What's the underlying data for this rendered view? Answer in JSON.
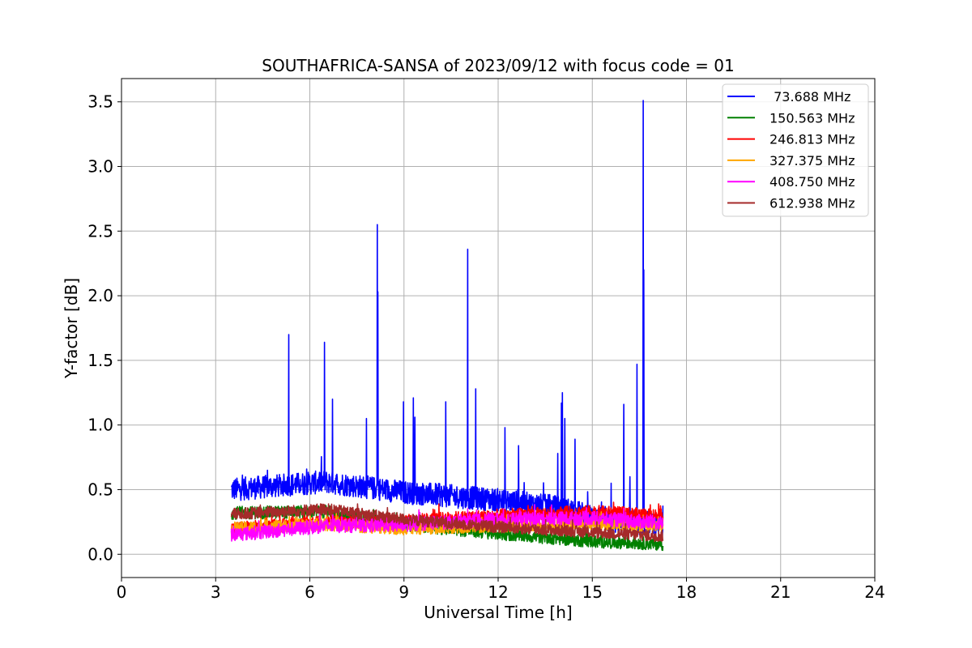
{
  "chart_data": {
    "type": "line",
    "title": "SOUTHAFRICA-SANSA of 2023/09/12 with focus code = 01",
    "xlabel": "Universal Time [h]",
    "ylabel": "Y-factor [dB]",
    "xlim": [
      0,
      24
    ],
    "ylim": [
      -0.18,
      3.68
    ],
    "x_ticks": [
      0,
      3,
      6,
      9,
      12,
      15,
      18,
      21,
      24
    ],
    "x_tick_labels": [
      "0",
      "3",
      "6",
      "9",
      "12",
      "15",
      "18",
      "21",
      "24"
    ],
    "y_ticks": [
      0.0,
      0.5,
      1.0,
      1.5,
      2.0,
      2.5,
      3.0,
      3.5
    ],
    "y_tick_labels": [
      "0.0",
      "0.5",
      "1.0",
      "1.5",
      "2.0",
      "2.5",
      "3.0",
      "3.5"
    ],
    "grid": true,
    "legend_position": "top-right",
    "data_range_hours": [
      3.5,
      17.25
    ],
    "series": [
      {
        "name": " 73.688 MHz",
        "color": "#0000ff",
        "baseline": [
          [
            3.5,
            0.5
          ],
          [
            6.5,
            0.56
          ],
          [
            9,
            0.48
          ],
          [
            12,
            0.42
          ],
          [
            14,
            0.36
          ],
          [
            15.5,
            0.26
          ],
          [
            17.25,
            0.22
          ]
        ],
        "noise": 0.09,
        "spikes": [
          [
            5.33,
            1.7
          ],
          [
            6.47,
            1.64
          ],
          [
            6.72,
            1.2
          ],
          [
            7.8,
            1.05
          ],
          [
            8.15,
            2.55
          ],
          [
            8.17,
            2.03
          ],
          [
            8.98,
            1.18
          ],
          [
            9.3,
            1.21
          ],
          [
            9.35,
            1.06
          ],
          [
            10.33,
            1.18
          ],
          [
            11.03,
            2.36
          ],
          [
            11.28,
            1.28
          ],
          [
            12.22,
            0.98
          ],
          [
            12.65,
            0.84
          ],
          [
            13.9,
            0.78
          ],
          [
            14.05,
            1.25
          ],
          [
            14.02,
            1.17
          ],
          [
            14.12,
            1.05
          ],
          [
            14.45,
            0.89
          ],
          [
            15.6,
            0.55
          ],
          [
            16.0,
            1.16
          ],
          [
            16.2,
            0.6
          ],
          [
            16.42,
            1.47
          ],
          [
            16.62,
            3.51
          ],
          [
            16.64,
            2.2
          ]
        ]
      },
      {
        "name": "150.563 MHz",
        "color": "#008000",
        "baseline": [
          [
            3.5,
            0.32
          ],
          [
            6.5,
            0.33
          ],
          [
            9,
            0.23
          ],
          [
            12,
            0.16
          ],
          [
            15,
            0.1
          ],
          [
            17.25,
            0.08
          ]
        ],
        "noise": 0.05,
        "spikes": []
      },
      {
        "name": "246.813 MHz",
        "color": "#ff0000",
        "baseline": [
          [
            3.5,
            0.2
          ],
          [
            6.5,
            0.25
          ],
          [
            9,
            0.26
          ],
          [
            12,
            0.3
          ],
          [
            15,
            0.33
          ],
          [
            17.25,
            0.3
          ]
        ],
        "noise": 0.05,
        "spikes": []
      },
      {
        "name": "327.375 MHz",
        "color": "#ffa500",
        "baseline": [
          [
            3.5,
            0.2
          ],
          [
            6.5,
            0.23
          ],
          [
            9,
            0.2
          ],
          [
            12,
            0.22
          ],
          [
            15,
            0.24
          ],
          [
            17.25,
            0.22
          ]
        ],
        "noise": 0.05,
        "spikes": []
      },
      {
        "name": "408.750 MHz",
        "color": "#ff00ff",
        "baseline": [
          [
            3.5,
            0.15
          ],
          [
            6.5,
            0.22
          ],
          [
            9,
            0.23
          ],
          [
            12,
            0.27
          ],
          [
            15,
            0.28
          ],
          [
            17.25,
            0.24
          ]
        ],
        "noise": 0.055,
        "spikes": []
      },
      {
        "name": "612.938 MHz",
        "color": "#a52a2a",
        "baseline": [
          [
            3.5,
            0.31
          ],
          [
            6.5,
            0.35
          ],
          [
            9,
            0.27
          ],
          [
            12,
            0.21
          ],
          [
            15,
            0.17
          ],
          [
            17.25,
            0.14
          ]
        ],
        "noise": 0.045,
        "spikes": []
      }
    ]
  }
}
